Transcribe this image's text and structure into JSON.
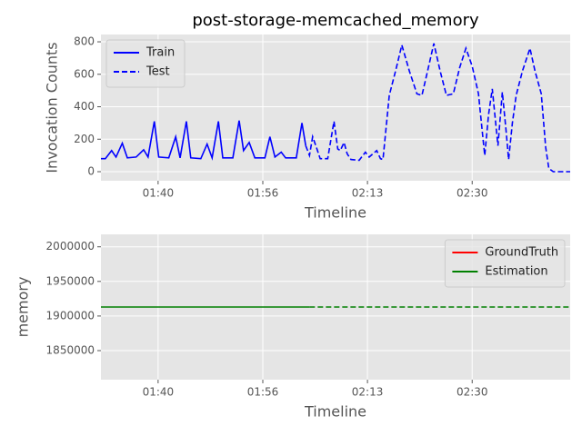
{
  "chart_data": [
    {
      "type": "line",
      "title": "post-storage-memcached_memory",
      "xlabel": "Timeline",
      "ylabel": "Invocation Counts",
      "x": [
        90.9,
        91.6,
        92.6,
        93.3,
        94.3,
        95.1,
        96.5,
        97.7,
        98.4,
        99.4,
        100.1,
        101.7,
        102.8,
        103.5,
        104.5,
        105.2,
        106.8,
        107.8,
        108.6,
        109.6,
        110.3,
        111.9,
        112.9,
        113.6,
        114.5,
        115.4,
        117.0,
        117.8,
        118.6,
        119.6,
        120.3,
        122.0,
        122.9,
        123.5,
        124.1,
        124.6,
        125.2,
        125.8,
        127.0,
        128.0,
        128.6,
        129.0,
        129.6,
        130.1,
        130.7,
        132.0,
        133.0,
        133.6,
        134.2,
        134.8,
        135.4,
        135.8,
        136.8,
        137.8,
        138.8,
        140.0,
        141.2,
        142.0,
        142.9,
        143.9,
        144.9,
        145.9,
        147.0,
        148.0,
        149.0,
        150.0,
        151.0,
        151.6,
        152.0,
        152.6,
        153.2,
        154.1,
        154.8,
        155.4,
        155.8,
        156.4,
        157.0,
        158.0,
        159.2,
        160.0,
        161.0,
        161.7,
        162.2,
        162.9,
        165.6
      ],
      "series": [
        {
          "name": "Train",
          "color": "#0000ff",
          "linestyle": "solid",
          "values": [
            80,
            80,
            130,
            90,
            175,
            85,
            90,
            135,
            90,
            310,
            90,
            85,
            215,
            85,
            310,
            85,
            80,
            170,
            85,
            310,
            85,
            85,
            315,
            130,
            180,
            85,
            85,
            215,
            90,
            120,
            85,
            85,
            300,
            160,
            null,
            null,
            null,
            null,
            null,
            null,
            null,
            null,
            null,
            null,
            null,
            null,
            null,
            null,
            null,
            null,
            null,
            null,
            null,
            null,
            null,
            null,
            null,
            null,
            null,
            null,
            null,
            null,
            null,
            null,
            null,
            null,
            null,
            null,
            null,
            null,
            null,
            null,
            null,
            null,
            null,
            null,
            null,
            null,
            null,
            null,
            null,
            null,
            null,
            null,
            null
          ]
        },
        {
          "name": "Test",
          "color": "#0000ff",
          "linestyle": "dashed",
          "values": [
            null,
            null,
            null,
            null,
            null,
            null,
            null,
            null,
            null,
            null,
            null,
            null,
            null,
            null,
            null,
            null,
            null,
            null,
            null,
            null,
            null,
            null,
            null,
            null,
            null,
            null,
            null,
            null,
            null,
            null,
            null,
            null,
            null,
            160,
            100,
            215,
            150,
            80,
            80,
            310,
            140,
            130,
            180,
            110,
            75,
            70,
            120,
            90,
            110,
            130,
            80,
            75,
            470,
            620,
            780,
            620,
            480,
            470,
            620,
            790,
            620,
            470,
            480,
            640,
            760,
            650,
            480,
            250,
            100,
            350,
            510,
            160,
            490,
            250,
            75,
            300,
            470,
            620,
            760,
            620,
            480,
            150,
            20,
            0,
            0
          ]
        }
      ],
      "xlim": [
        90.9,
        165.6
      ],
      "ylim": [
        -56,
        845
      ],
      "xticks": [
        {
          "value": 100,
          "label": "01:40"
        },
        {
          "value": 116.67,
          "label": "01:56"
        },
        {
          "value": 133.33,
          "label": "02:13"
        },
        {
          "value": 150,
          "label": "02:30"
        }
      ],
      "yticks": [
        0,
        200,
        400,
        600,
        800
      ],
      "grid": true,
      "legend": "upper left"
    },
    {
      "type": "line",
      "xlabel": "Timeline",
      "ylabel": "memory",
      "x": [
        90.9,
        124.1,
        165.6
      ],
      "series": [
        {
          "name": "GroundTruth",
          "color": "#ff0000",
          "values": [
            null,
            null,
            null
          ]
        },
        {
          "name": "Estimation",
          "color": "#008000",
          "values": [
            1913000,
            1913000,
            1913000
          ],
          "segment_styles": [
            "solid",
            "dashed"
          ]
        }
      ],
      "xlim": [
        90.9,
        165.6
      ],
      "ylim": [
        1808000,
        2018000
      ],
      "xticks": [
        {
          "value": 100,
          "label": "01:40"
        },
        {
          "value": 116.67,
          "label": "01:56"
        },
        {
          "value": 133.33,
          "label": "02:13"
        },
        {
          "value": 150,
          "label": "02:30"
        }
      ],
      "yticks": [
        1850000,
        1900000,
        1950000,
        2000000
      ],
      "grid": true,
      "legend": "upper right"
    }
  ]
}
